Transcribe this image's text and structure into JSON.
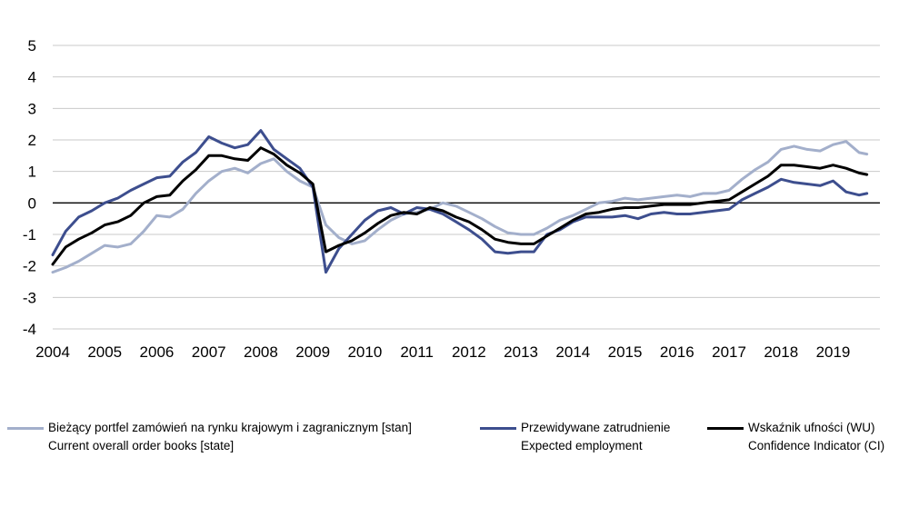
{
  "chart_data": {
    "type": "line",
    "y_ticks": [
      "5",
      "4",
      "3",
      "2",
      "1",
      "0",
      "-1",
      "-2",
      "-3",
      "-4"
    ],
    "ylim": [
      -4,
      5
    ],
    "x_ticks": [
      "2004",
      "2005",
      "2006",
      "2007",
      "2008",
      "2009",
      "2010",
      "2011",
      "2012",
      "2013",
      "2014",
      "2015",
      "2016",
      "2017",
      "2018",
      "2019"
    ],
    "xlim": [
      2004,
      2019.9
    ],
    "grid": true,
    "zero_line": true,
    "legend_position": "bottom",
    "series": [
      {
        "key": "orders",
        "label_pl": "Bieżący portfel zamówień na rynku krajowym i zagranicznym [stan]",
        "label_en": "Current overall order books [state]",
        "color": "#a3afcb",
        "x": [
          2004.0,
          2004.25,
          2004.5,
          2004.75,
          2005.0,
          2005.25,
          2005.5,
          2005.75,
          2006.0,
          2006.25,
          2006.5,
          2006.75,
          2007.0,
          2007.25,
          2007.5,
          2007.75,
          2008.0,
          2008.25,
          2008.5,
          2008.75,
          2009.0,
          2009.25,
          2009.5,
          2009.75,
          2010.0,
          2010.25,
          2010.5,
          2010.75,
          2011.0,
          2011.25,
          2011.5,
          2011.75,
          2012.0,
          2012.25,
          2012.5,
          2012.75,
          2013.0,
          2013.25,
          2013.5,
          2013.75,
          2014.0,
          2014.25,
          2014.5,
          2014.75,
          2015.0,
          2015.25,
          2015.5,
          2015.75,
          2016.0,
          2016.25,
          2016.5,
          2016.75,
          2017.0,
          2017.25,
          2017.5,
          2017.75,
          2018.0,
          2018.25,
          2018.5,
          2018.75,
          2019.0,
          2019.25,
          2019.5,
          2019.65
        ],
        "values": [
          -2.2,
          -2.05,
          -1.85,
          -1.6,
          -1.35,
          -1.4,
          -1.3,
          -0.9,
          -0.4,
          -0.45,
          -0.2,
          0.3,
          0.7,
          1.0,
          1.1,
          0.95,
          1.25,
          1.4,
          1.0,
          0.7,
          0.5,
          -0.7,
          -1.1,
          -1.3,
          -1.2,
          -0.85,
          -0.55,
          -0.35,
          -0.3,
          -0.2,
          0.0,
          -0.1,
          -0.3,
          -0.5,
          -0.75,
          -0.95,
          -1.0,
          -1.0,
          -0.8,
          -0.55,
          -0.4,
          -0.2,
          0.0,
          0.05,
          0.15,
          0.1,
          0.15,
          0.2,
          0.25,
          0.2,
          0.3,
          0.3,
          0.4,
          0.75,
          1.05,
          1.3,
          1.7,
          1.8,
          1.7,
          1.65,
          1.85,
          1.95,
          1.6,
          1.55
        ]
      },
      {
        "key": "employment",
        "label_pl": "Przewidywane zatrudnienie",
        "label_en": "Expected employment",
        "color": "#3d4e8e",
        "x": [
          2004.0,
          2004.25,
          2004.5,
          2004.75,
          2005.0,
          2005.25,
          2005.5,
          2005.75,
          2006.0,
          2006.25,
          2006.5,
          2006.75,
          2007.0,
          2007.25,
          2007.5,
          2007.75,
          2008.0,
          2008.25,
          2008.5,
          2008.75,
          2009.0,
          2009.25,
          2009.5,
          2009.75,
          2010.0,
          2010.25,
          2010.5,
          2010.75,
          2011.0,
          2011.25,
          2011.5,
          2011.75,
          2012.0,
          2012.25,
          2012.5,
          2012.75,
          2013.0,
          2013.25,
          2013.5,
          2013.75,
          2014.0,
          2014.25,
          2014.5,
          2014.75,
          2015.0,
          2015.25,
          2015.5,
          2015.75,
          2016.0,
          2016.25,
          2016.5,
          2016.75,
          2017.0,
          2017.25,
          2017.5,
          2017.75,
          2018.0,
          2018.25,
          2018.5,
          2018.75,
          2019.0,
          2019.25,
          2019.5,
          2019.65
        ],
        "values": [
          -1.65,
          -0.9,
          -0.45,
          -0.25,
          0.0,
          0.15,
          0.4,
          0.6,
          0.8,
          0.85,
          1.3,
          1.6,
          2.1,
          1.9,
          1.75,
          1.85,
          2.3,
          1.7,
          1.4,
          1.1,
          0.5,
          -2.2,
          -1.45,
          -1.0,
          -0.55,
          -0.25,
          -0.15,
          -0.35,
          -0.15,
          -0.2,
          -0.35,
          -0.6,
          -0.85,
          -1.15,
          -1.55,
          -1.6,
          -1.55,
          -1.55,
          -1.0,
          -0.85,
          -0.6,
          -0.45,
          -0.45,
          -0.45,
          -0.4,
          -0.5,
          -0.35,
          -0.3,
          -0.35,
          -0.35,
          -0.3,
          -0.25,
          -0.2,
          0.1,
          0.3,
          0.5,
          0.75,
          0.65,
          0.6,
          0.55,
          0.7,
          0.35,
          0.25,
          0.3
        ]
      },
      {
        "key": "ci",
        "label_pl": "Wskaźnik ufności (WU)",
        "label_en": "Confidence Indicator (CI)",
        "color": "#000000",
        "x": [
          2004.0,
          2004.25,
          2004.5,
          2004.75,
          2005.0,
          2005.25,
          2005.5,
          2005.75,
          2006.0,
          2006.25,
          2006.5,
          2006.75,
          2007.0,
          2007.25,
          2007.5,
          2007.75,
          2008.0,
          2008.25,
          2008.5,
          2008.75,
          2009.0,
          2009.25,
          2009.5,
          2009.75,
          2010.0,
          2010.25,
          2010.5,
          2010.75,
          2011.0,
          2011.25,
          2011.5,
          2011.75,
          2012.0,
          2012.25,
          2012.5,
          2012.75,
          2013.0,
          2013.25,
          2013.5,
          2013.75,
          2014.0,
          2014.25,
          2014.5,
          2014.75,
          2015.0,
          2015.25,
          2015.5,
          2015.75,
          2016.0,
          2016.25,
          2016.5,
          2016.75,
          2017.0,
          2017.25,
          2017.5,
          2017.75,
          2018.0,
          2018.25,
          2018.5,
          2018.75,
          2019.0,
          2019.25,
          2019.5,
          2019.65
        ],
        "values": [
          -1.95,
          -1.4,
          -1.15,
          -0.95,
          -0.7,
          -0.6,
          -0.4,
          0.0,
          0.2,
          0.25,
          0.7,
          1.05,
          1.5,
          1.5,
          1.4,
          1.35,
          1.75,
          1.55,
          1.2,
          0.95,
          0.6,
          -1.55,
          -1.35,
          -1.2,
          -0.95,
          -0.65,
          -0.4,
          -0.3,
          -0.35,
          -0.15,
          -0.25,
          -0.45,
          -0.6,
          -0.85,
          -1.15,
          -1.25,
          -1.3,
          -1.3,
          -1.05,
          -0.8,
          -0.55,
          -0.35,
          -0.3,
          -0.2,
          -0.15,
          -0.15,
          -0.1,
          -0.05,
          -0.05,
          -0.05,
          0.0,
          0.05,
          0.1,
          0.35,
          0.6,
          0.85,
          1.2,
          1.2,
          1.15,
          1.1,
          1.2,
          1.1,
          0.95,
          0.9
        ]
      }
    ]
  }
}
